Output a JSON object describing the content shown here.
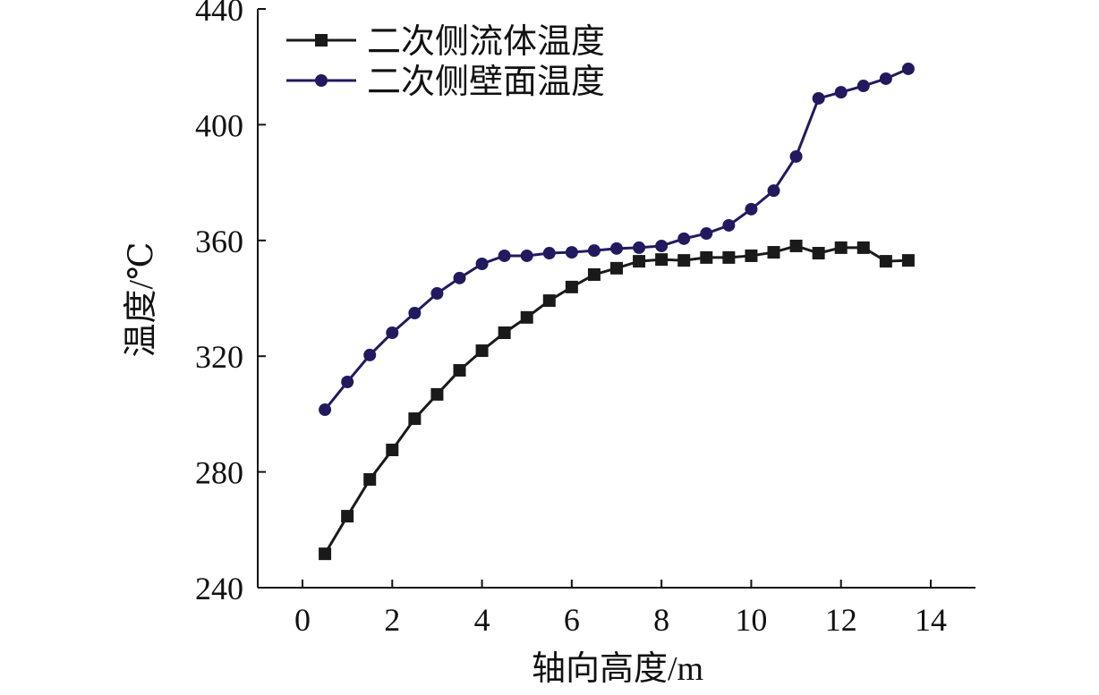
{
  "chart_data": {
    "type": "line",
    "title": "",
    "xlabel": "轴向高度/m",
    "ylabel": "温度/℃",
    "xlim": [
      -1,
      15
    ],
    "ylim": [
      240,
      440
    ],
    "xticks": [
      0,
      2,
      4,
      6,
      8,
      10,
      12,
      14
    ],
    "yticks": [
      240,
      280,
      320,
      360,
      400,
      440
    ],
    "grid": false,
    "legend_position": "top-left",
    "x": [
      0.5,
      1,
      1.5,
      2,
      2.5,
      3,
      3.5,
      4,
      4.5,
      5,
      5.5,
      6,
      6.5,
      7,
      7.5,
      8,
      8.5,
      9,
      9.5,
      10,
      10.5,
      11,
      11.5,
      12,
      12.5,
      13,
      13.5
    ],
    "series": [
      {
        "name": "二次侧流体温度",
        "color": "#1a1a1a",
        "marker": "square",
        "values": [
          251.7,
          264.7,
          277.4,
          287.6,
          298.4,
          306.8,
          315.1,
          321.9,
          328.1,
          333.4,
          339.2,
          343.9,
          348.2,
          350.4,
          352.8,
          353.4,
          353.1,
          354.1,
          354.1,
          354.7,
          355.9,
          358.1,
          355.6,
          357.5,
          357.5,
          352.8,
          353.1
        ]
      },
      {
        "name": "二次侧壁面温度",
        "color": "#221a5e",
        "marker": "circle",
        "values": [
          301.5,
          311.1,
          320.4,
          328.1,
          334.9,
          341.7,
          347.0,
          351.9,
          354.7,
          354.7,
          355.6,
          355.9,
          356.5,
          357.2,
          357.5,
          358.1,
          360.6,
          362.4,
          365.2,
          370.8,
          377.2,
          389.0,
          409.1,
          411.2,
          413.4,
          415.9,
          419.3
        ]
      }
    ]
  }
}
